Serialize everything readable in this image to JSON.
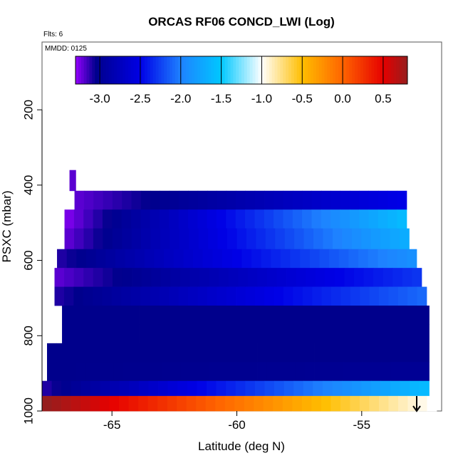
{
  "chart_data": {
    "type": "heatmap",
    "title": "ORCAS RF06 CONCD_LWI (Log)",
    "subtitle_flts": "Flts: 6",
    "subtitle_mmdd": "MMDD: 0125",
    "xlabel": "Latitude (deg N)",
    "ylabel": "PSXC (mbar)",
    "xlim": [
      -67.8,
      -51.8
    ],
    "ylim": [
      1000,
      20
    ],
    "x_ticks": [
      -65,
      -60,
      -55
    ],
    "x_tick_labels": [
      "-65",
      "-60",
      "-55"
    ],
    "y_ticks": [
      200,
      400,
      600,
      800,
      1000
    ],
    "y_tick_labels": [
      "200",
      "400",
      "600",
      "800",
      "1000"
    ],
    "colorbar": {
      "range": [
        -3.3,
        0.8
      ],
      "ticks": [
        -3.0,
        -2.5,
        -2.0,
        -1.5,
        -1.0,
        -0.5,
        0.0,
        0.5
      ],
      "tick_labels": [
        "-3.0",
        "-2.5",
        "-2.0",
        "-1.5",
        "-1.0",
        "-0.5",
        "0.0",
        "0.5"
      ]
    },
    "rows": [
      {
        "p_top": 360,
        "p_bot": 415,
        "lat_start": -66.7,
        "lat_end": -66.45,
        "val_start": -3.2,
        "val_end": -3.2
      },
      {
        "p_top": 415,
        "p_bot": 465,
        "lat_start": -66.5,
        "lat_end": -53.2,
        "val_start": -3.2,
        "val_end": -2.5
      },
      {
        "p_top": 465,
        "p_bot": 515,
        "lat_start": -66.9,
        "lat_end": -53.2,
        "val_start": -3.25,
        "val_end": -1.6
      },
      {
        "p_top": 515,
        "p_bot": 570,
        "lat_start": -66.9,
        "lat_end": -53.1,
        "val_start": -3.2,
        "val_end": -1.7
      },
      {
        "p_top": 570,
        "p_bot": 620,
        "lat_start": -67.2,
        "lat_end": -52.8,
        "val_start": -3.1,
        "val_end": -1.9
      },
      {
        "p_top": 620,
        "p_bot": 670,
        "lat_start": -67.3,
        "lat_end": -52.6,
        "val_start": -3.2,
        "val_end": -2.3
      },
      {
        "p_top": 670,
        "p_bot": 720,
        "lat_start": -67.3,
        "lat_end": -52.4,
        "val_start": -3.1,
        "val_end": -2.1
      },
      {
        "p_top": 720,
        "p_bot": 770,
        "lat_start": -67.0,
        "lat_end": -52.3,
        "val_start": -3.05,
        "val_end": -3.05
      },
      {
        "p_top": 770,
        "p_bot": 820,
        "lat_start": -67.0,
        "lat_end": -52.3,
        "val_start": -3.05,
        "val_end": -3.05
      },
      {
        "p_top": 820,
        "p_bot": 870,
        "lat_start": -67.6,
        "lat_end": -52.3,
        "val_start": -3.05,
        "val_end": -3.05
      },
      {
        "p_top": 870,
        "p_bot": 920,
        "lat_start": -67.6,
        "lat_end": -52.3,
        "val_start": -3.05,
        "val_end": -3.0
      },
      {
        "p_top": 920,
        "p_bot": 960,
        "lat_start": -67.8,
        "lat_end": -52.3,
        "val_start": -3.1,
        "val_end": -1.6
      },
      {
        "p_top": 960,
        "p_bot": 1000,
        "lat_start": -67.8,
        "lat_end": -52.0,
        "val_start": 0.8,
        "val_end": -1.0
      }
    ]
  }
}
